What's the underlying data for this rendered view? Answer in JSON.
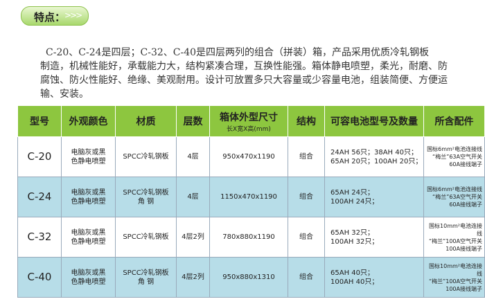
{
  "header": {
    "label": "特点："
  },
  "description": {
    "lines": [
      "C-20、C-24是四层；C-32、C-40是四层两列的组合（拼装）箱，产品采用优质冷轧钢板",
      "制造，机械性能好，承载能力大，结构紧凑合理，互换性能强。箱体静电喷塑，柔光，耐磨、防",
      "腐蚀、防火性能好、绝缘、美观耐用。设计可放置多只大容量或少容量电池，组装简便、方便运",
      "输、安装。"
    ]
  },
  "table": {
    "columns": [
      {
        "title": "型号"
      },
      {
        "title": "外观颜色"
      },
      {
        "title": "材质"
      },
      {
        "title": "层数"
      },
      {
        "title": "箱体外型尺寸",
        "subtitle": "长X宽X高(mm)"
      },
      {
        "title": "结构"
      },
      {
        "title": "可容电池型号及数量"
      },
      {
        "title": "所含配件"
      }
    ],
    "rows": [
      [
        [
          "C-20"
        ],
        [
          "电脑灰或黑",
          "色静电喷塑"
        ],
        [
          "SPCC冷轧钢板"
        ],
        [
          "4层"
        ],
        [
          "950x470x1190"
        ],
        [
          "组合"
        ],
        [
          "24AH  56只；38AH  40只；",
          "65AH  20只；100AH  20只；"
        ],
        [
          "国标6mm²电池连接线",
          "“梅兰”63A空气开关",
          "60A接线端子"
        ]
      ],
      [
        [
          "C-24"
        ],
        [
          "电脑灰或黑",
          "色静电喷塑"
        ],
        [
          "SPCC冷轧钢板",
          "角  钢"
        ],
        [
          "4层"
        ],
        [
          "1150x470x1190"
        ],
        [
          "组合"
        ],
        [
          "65AH  24只；",
          "100AH  24只；"
        ],
        [
          "国标6mm²电池连接线",
          "“梅兰”63A空气开关",
          "60A接线端子"
        ]
      ],
      [
        [
          "C-32"
        ],
        [
          "电脑灰或黑",
          "色静电喷塑"
        ],
        [
          "SPCC冷轧钢板"
        ],
        [
          "4层2列"
        ],
        [
          "780x880x1190"
        ],
        [
          "组合"
        ],
        [
          "65AH  32只；",
          "100AH  32只；"
        ],
        [
          "国标10mm²电池连接线",
          "“梅兰”100A空气开关",
          "100A接线端子"
        ]
      ],
      [
        [
          "C-40"
        ],
        [
          "电脑灰或黑",
          "色静电喷塑"
        ],
        [
          "SPCC冷轧钢板",
          "角  钢"
        ],
        [
          "4层2列"
        ],
        [
          "950x880x1310"
        ],
        [
          "组合"
        ],
        [
          "65AH  40只；",
          "100AH  40只；"
        ],
        [
          "国标10mm²电池连接线",
          "“梅兰”100A空气开关",
          "100A接线端子"
        ]
      ]
    ]
  }
}
